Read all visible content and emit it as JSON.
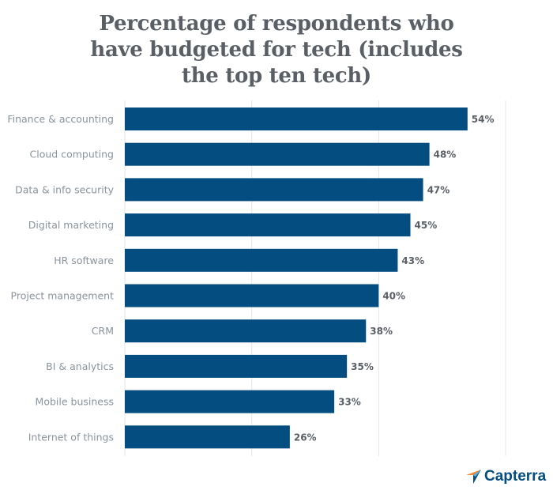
{
  "chart_data": {
    "type": "bar",
    "orientation": "horizontal",
    "title_lines": [
      "Percentage of respondents who",
      "have budgeted for tech (includes",
      "the top ten tech)"
    ],
    "categories": [
      "Finance & accounting",
      "Cloud computing",
      "Data & info security",
      "Digital marketing",
      "HR software",
      "Project management",
      "CRM",
      "BI & analytics",
      "Mobile business",
      "Internet of things"
    ],
    "values": [
      54,
      48,
      47,
      45,
      43,
      40,
      38,
      35,
      33,
      26
    ],
    "data_labels": [
      "54%",
      "48%",
      "47%",
      "45%",
      "43%",
      "40%",
      "38%",
      "35%",
      "33%",
      "26%"
    ],
    "xlim": [
      0,
      60
    ],
    "gridlines": [
      0,
      20,
      40,
      60
    ],
    "grid": true,
    "bar_color": "#044d80"
  },
  "logo": {
    "text": "Capterra",
    "colors": [
      "#044d80",
      "#f58a34",
      "#57b4e4"
    ]
  }
}
